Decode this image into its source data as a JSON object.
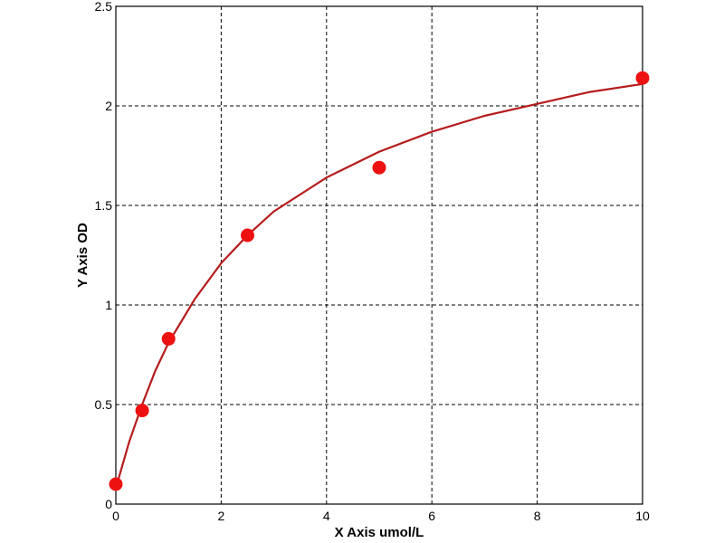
{
  "chart_data": {
    "type": "scatter",
    "xlabel": "X Axis umol/L",
    "ylabel": "Y Axis OD",
    "xlim": [
      0,
      10
    ],
    "ylim": [
      0,
      2.5
    ],
    "xticks": [
      0,
      2,
      4,
      6,
      8,
      10
    ],
    "yticks": [
      0,
      0.5,
      1,
      1.5,
      2,
      2.5
    ],
    "grid": true,
    "series": [
      {
        "type": "line",
        "color": "#b51c1c",
        "x": [
          0,
          0.25,
          0.5,
          0.75,
          1,
          1.5,
          2,
          2.5,
          3,
          4,
          5,
          6,
          7,
          8,
          9,
          10
        ],
        "values": [
          0.08,
          0.31,
          0.5,
          0.67,
          0.81,
          1.03,
          1.21,
          1.35,
          1.47,
          1.64,
          1.77,
          1.87,
          1.95,
          2.01,
          2.07,
          2.11
        ]
      },
      {
        "type": "scatter",
        "color": "#ee1111",
        "x": [
          0,
          0.5,
          1,
          2.5,
          5,
          10
        ],
        "values": [
          0.1,
          0.47,
          0.83,
          1.35,
          1.69,
          2.14
        ]
      }
    ]
  }
}
